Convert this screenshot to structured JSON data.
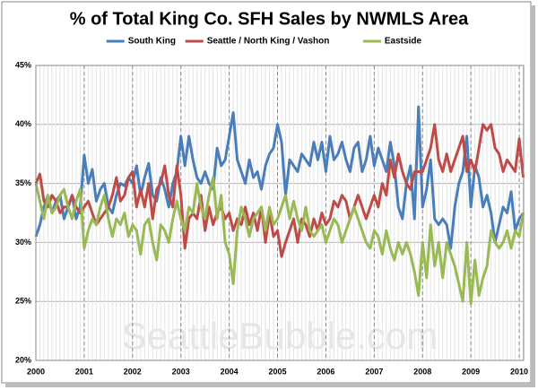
{
  "chart_data": {
    "type": "line",
    "title": "% of Total King Co. SFH Sales by NWMLS Area",
    "watermark": "SeattleBubble.com",
    "categories": [
      "2000",
      null,
      null,
      null,
      null,
      null,
      null,
      null,
      null,
      null,
      null,
      null,
      "2001",
      null,
      null,
      null,
      null,
      null,
      null,
      null,
      null,
      null,
      null,
      null,
      "2002",
      null,
      null,
      null,
      null,
      null,
      null,
      null,
      null,
      null,
      null,
      null,
      "2003",
      null,
      null,
      null,
      null,
      null,
      null,
      null,
      null,
      null,
      null,
      null,
      "2004",
      null,
      null,
      null,
      null,
      null,
      null,
      null,
      null,
      null,
      null,
      null,
      "2005",
      null,
      null,
      null,
      null,
      null,
      null,
      null,
      null,
      null,
      null,
      null,
      "2006",
      null,
      null,
      null,
      null,
      null,
      null,
      null,
      null,
      null,
      null,
      null,
      "2007",
      null,
      null,
      null,
      null,
      null,
      null,
      null,
      null,
      null,
      null,
      null,
      "2008",
      null,
      null,
      null,
      null,
      null,
      null,
      null,
      null,
      null,
      null,
      null,
      "2009",
      null,
      null,
      null,
      null,
      null,
      null,
      null,
      null,
      null,
      null,
      null,
      "2010",
      null
    ],
    "series": [
      {
        "name": "South King",
        "color": "#4a7ebb",
        "values": [
          30.5,
          31.5,
          33,
          34,
          32.5,
          33.5,
          34,
          32,
          33,
          34,
          32,
          33,
          37.4,
          35,
          36.2,
          33.5,
          34.5,
          35,
          33,
          32.5,
          34,
          35,
          34.8,
          35.5,
          35,
          36.5,
          34,
          35.5,
          36.7,
          34,
          33.5,
          35.5,
          34.5,
          33,
          35,
          36,
          39,
          36.5,
          39,
          37,
          35.5,
          35,
          36,
          35,
          34.5,
          38,
          36.5,
          37,
          39,
          41,
          37,
          36,
          35,
          37,
          35.5,
          36,
          34.5,
          36.5,
          37.5,
          38,
          40,
          38.5,
          34,
          37,
          36.5,
          36,
          37.5,
          37,
          36.5,
          38.5,
          37,
          38.5,
          36,
          39,
          37,
          37.5,
          38.5,
          37,
          36,
          38,
          38.5,
          36,
          37,
          39,
          36.5,
          38,
          37,
          36,
          38.5,
          36.5,
          33,
          32,
          35,
          36.5,
          32,
          41.5,
          33,
          34.5,
          37,
          32,
          31.5,
          32,
          31.5,
          29.5,
          33,
          35,
          36,
          39,
          33,
          36.5,
          35.5,
          33,
          34,
          32.5,
          30,
          31.5,
          33,
          32.5,
          34.3,
          31,
          32,
          32.5
        ]
      },
      {
        "name": "Seattle / North King / Vashon",
        "color": "#be4b48",
        "values": [
          35,
          35.8,
          33.5,
          33,
          34,
          33.5,
          32.5,
          33,
          33,
          34,
          33,
          32.5,
          33,
          33.5,
          32.5,
          31.5,
          32,
          32.5,
          33,
          34,
          35.5,
          33.5,
          34,
          35.5,
          36,
          33,
          34.5,
          33,
          35,
          32,
          34.5,
          35,
          36.5,
          34,
          33,
          36.5,
          34,
          29.5,
          32,
          32.5,
          32,
          34,
          31,
          33,
          31.5,
          32.5,
          33,
          32,
          32.5,
          31,
          32,
          31.5,
          33,
          31.5,
          32.5,
          31,
          33,
          30,
          32.5,
          30.5,
          31,
          28.8,
          30,
          31,
          32,
          30,
          32,
          31.5,
          30.5,
          32,
          31,
          32.5,
          31.5,
          32,
          33.5,
          33,
          34,
          33.5,
          32,
          33,
          34,
          33,
          32,
          33,
          34,
          33,
          35,
          34,
          37,
          35.5,
          37.5,
          36,
          35,
          34.5,
          36,
          36,
          36,
          37,
          38,
          40,
          37,
          36,
          37.5,
          36,
          37,
          38,
          39,
          36,
          37,
          36,
          38,
          40,
          39.5,
          40,
          38,
          37.5,
          36,
          37,
          36.5,
          36,
          38.8,
          35.5
        ]
      },
      {
        "name": "Eastside",
        "color": "#98b954",
        "values": [
          35,
          33.5,
          32,
          34,
          32.5,
          33,
          34,
          34.5,
          33,
          32,
          33.5,
          34.5,
          29.5,
          31,
          32,
          31.5,
          33,
          34,
          32,
          30.5,
          32,
          31.5,
          32.5,
          30.5,
          31.5,
          31,
          29,
          31.5,
          32,
          30,
          28.5,
          31.5,
          31,
          30,
          32,
          33.5,
          32,
          31,
          33,
          32.5,
          35,
          33,
          32,
          34,
          35.5,
          32,
          34,
          30,
          29,
          26.5,
          31,
          33,
          32,
          30.5,
          32,
          32.5,
          33,
          31,
          33,
          31.5,
          32,
          33,
          34,
          32,
          33.5,
          32,
          31,
          33,
          31,
          30.5,
          31,
          31.5,
          30,
          31,
          32,
          31.5,
          30,
          31,
          32,
          33,
          32,
          31,
          30,
          29.5,
          31,
          30.5,
          29,
          31,
          29.5,
          28.5,
          30,
          29,
          30,
          29,
          27.5,
          25.5,
          30,
          27,
          31.5,
          28,
          30,
          27,
          30,
          29,
          28,
          26.5,
          25,
          30,
          24.8,
          28.5,
          25.5,
          27,
          28,
          31,
          30,
          29.5,
          30,
          31,
          29.5,
          31,
          30.5,
          32.5
        ]
      }
    ],
    "ylim": [
      20,
      45
    ],
    "yticks": [
      {
        "value": 20,
        "label": "20%"
      },
      {
        "value": 25,
        "label": "25%"
      },
      {
        "value": 30,
        "label": "30%"
      },
      {
        "value": 35,
        "label": "35%"
      },
      {
        "value": 40,
        "label": "40%"
      },
      {
        "value": 45,
        "label": "45%"
      }
    ],
    "grid": true,
    "legend": "top"
  }
}
